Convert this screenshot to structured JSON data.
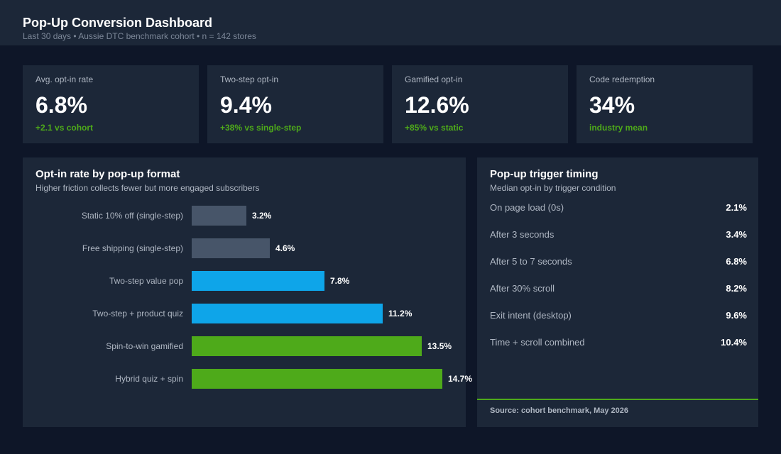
{
  "header": {
    "title": "Pop-Up Conversion Dashboard",
    "subtitle": "Last 30 days  •  Aussie DTC benchmark cohort  •  n = 142 stores"
  },
  "kpis": [
    {
      "label": "Avg. opt-in rate",
      "value": "6.8%",
      "delta": "+2.1 vs cohort"
    },
    {
      "label": "Two-step opt-in",
      "value": "9.4%",
      "delta": "+38% vs single-step"
    },
    {
      "label": "Gamified opt-in",
      "value": "12.6%",
      "delta": "+85% vs static"
    },
    {
      "label": "Code redemption",
      "value": "34%",
      "delta": "industry mean"
    }
  ],
  "format_panel": {
    "title": "Opt-in rate by pop-up format",
    "subtitle": "Higher friction collects fewer but more engaged subscribers"
  },
  "chart_data": {
    "type": "bar",
    "orientation": "horizontal",
    "title": "Opt-in rate by pop-up format",
    "subtitle": "Higher friction collects fewer but more engaged subscribers",
    "categories": [
      "Static 10% off (single-step)",
      "Free shipping (single-step)",
      "Two-step value pop",
      "Two-step + product quiz",
      "Spin-to-win gamified",
      "Hybrid quiz + spin"
    ],
    "values": [
      3.2,
      4.6,
      7.8,
      11.2,
      13.5,
      14.7
    ],
    "value_labels": [
      "3.2%",
      "4.6%",
      "7.8%",
      "11.2%",
      "13.5%",
      "14.7%"
    ],
    "colors": [
      "#475569",
      "#475569",
      "#0ea5e9",
      "#0ea5e9",
      "#4eaa1a",
      "#4eaa1a"
    ],
    "xlim": [
      0,
      16.5
    ],
    "grid": false,
    "unit": "%"
  },
  "timing_panel": {
    "title": "Pop-up trigger timing",
    "subtitle": "Median opt-in by trigger condition",
    "rows": [
      {
        "label": "On page load (0s)",
        "value": "2.1%"
      },
      {
        "label": "After 3 seconds",
        "value": "3.4%"
      },
      {
        "label": "After 5 to 7 seconds",
        "value": "6.8%"
      },
      {
        "label": "After 30% scroll",
        "value": "8.2%"
      },
      {
        "label": "Exit intent (desktop)",
        "value": "9.6%"
      },
      {
        "label": "Time + scroll combined",
        "value": "10.4%"
      }
    ],
    "source": "Source: cohort benchmark, May 2026"
  },
  "colors": {
    "background": "#0e1628",
    "panel": "#1c2738",
    "accent_green": "#4eaa1a",
    "accent_blue": "#0ea5e9",
    "muted_bar": "#475569"
  }
}
